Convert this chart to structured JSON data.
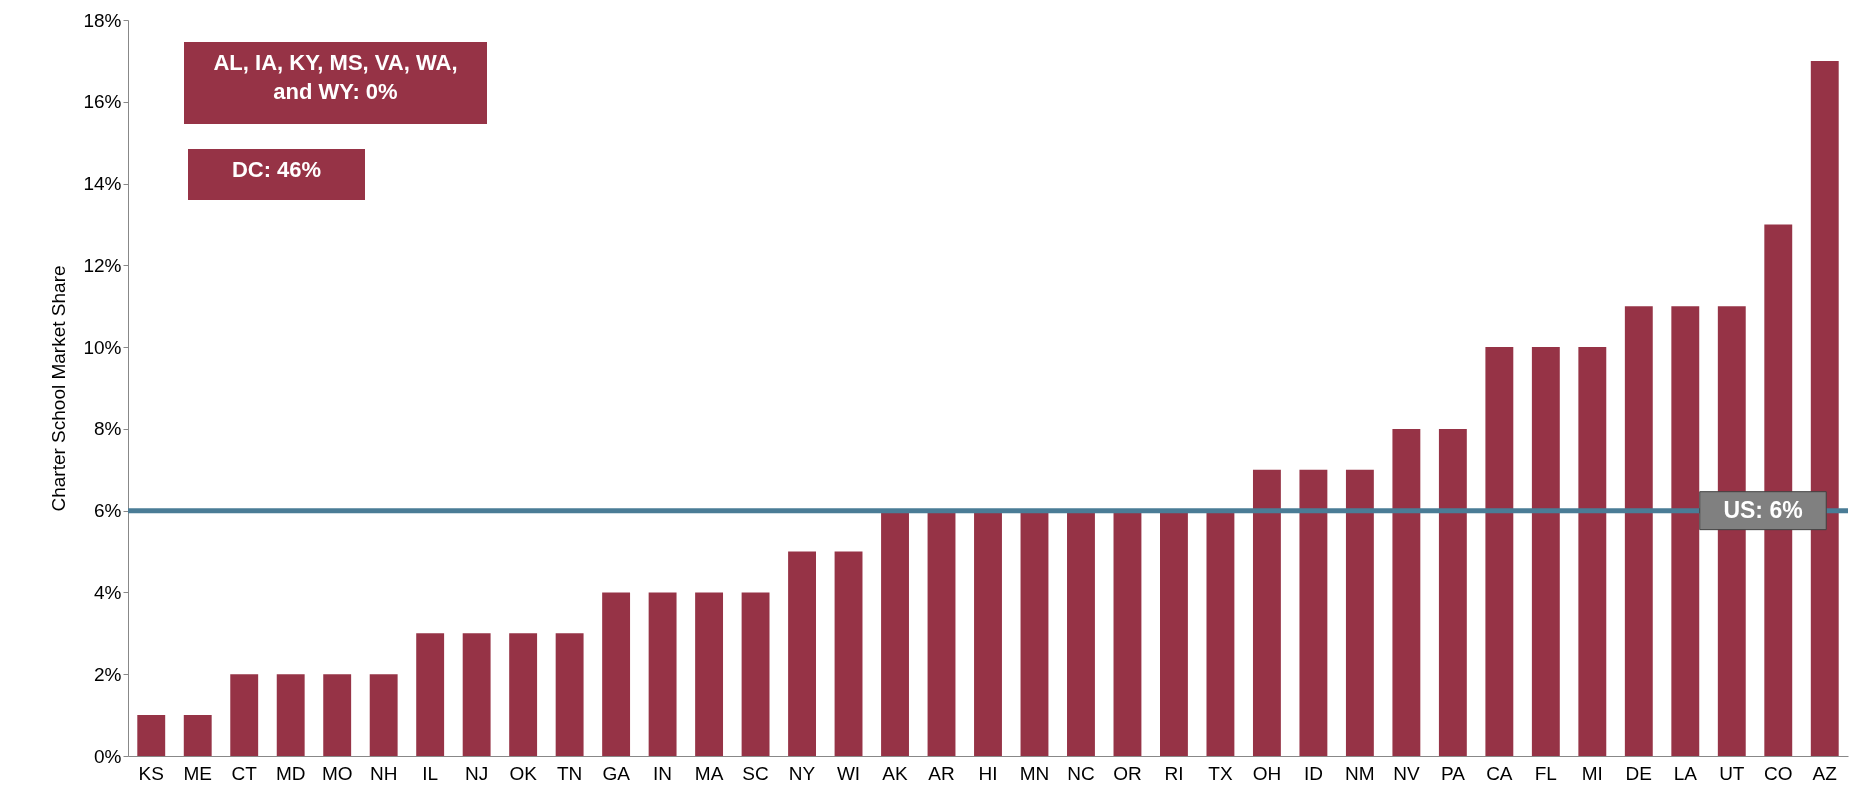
{
  "chart_data": {
    "type": "bar",
    "ylabel": "Charter School Market Share",
    "categories": [
      "KS",
      "ME",
      "CT",
      "MD",
      "MO",
      "NH",
      "IL",
      "NJ",
      "OK",
      "TN",
      "GA",
      "IN",
      "MA",
      "SC",
      "NY",
      "WI",
      "AK",
      "AR",
      "HI",
      "MN",
      "NC",
      "OR",
      "RI",
      "TX",
      "OH",
      "ID",
      "NM",
      "NV",
      "PA",
      "CA",
      "FL",
      "MI",
      "DE",
      "LA",
      "UT",
      "CO",
      "AZ"
    ],
    "values": [
      1,
      1,
      2,
      2,
      2,
      2,
      3,
      3,
      3,
      3,
      4,
      4,
      4,
      4,
      5,
      5,
      6,
      6,
      6,
      6,
      6,
      6,
      6,
      6,
      7,
      7,
      7,
      8,
      8,
      10,
      10,
      10,
      11,
      11,
      11,
      13,
      17
    ],
    "color": "#963346",
    "ylim": [
      0,
      18
    ],
    "yticks": [
      {
        "value": 0,
        "label": "0%"
      },
      {
        "value": 2,
        "label": "2%"
      },
      {
        "value": 4,
        "label": "4%"
      },
      {
        "value": 6,
        "label": "6%"
      },
      {
        "value": 8,
        "label": "8%"
      },
      {
        "value": 10,
        "label": "10%"
      },
      {
        "value": 12,
        "label": "12%"
      },
      {
        "value": 14,
        "label": "14%"
      },
      {
        "value": 16,
        "label": "16%"
      },
      {
        "value": 18,
        "label": "18%"
      }
    ],
    "ref_lines": [
      {
        "axis": "y",
        "value": 6,
        "label": "US: 6%",
        "color": "#4a7c96"
      }
    ],
    "annotations": [
      "AL, IA, KY, MS, VA, WA, and WY: 0%",
      "DC: 46%"
    ],
    "grid": false
  }
}
